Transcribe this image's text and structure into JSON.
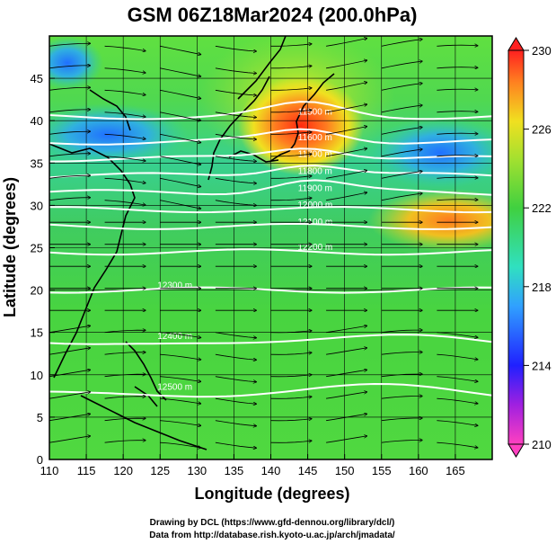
{
  "chart_data": {
    "type": "heatmap",
    "title": "GSM 06Z18Mar2024 (200.0hPa)",
    "xlabel": "Longitude (degrees)",
    "ylabel": "Latitude  (degrees)",
    "xlim": [
      110,
      170
    ],
    "ylim": [
      0,
      50
    ],
    "xticks": [
      "110",
      "115",
      "120",
      "125",
      "130",
      "135",
      "140",
      "145",
      "150",
      "155",
      "160",
      "165"
    ],
    "yticks": [
      "0",
      "5",
      "10",
      "15",
      "20",
      "25",
      "30",
      "35",
      "40",
      "45"
    ],
    "colorbar": {
      "range": [
        210,
        230
      ],
      "ticks": [
        "210",
        "214",
        "218",
        "222",
        "226",
        "230"
      ]
    },
    "contours": {
      "color": "#ffffff",
      "levels": [
        {
          "label": "11500 m",
          "lat": 40.5
        },
        {
          "label": "11600 m",
          "lat": 37.5
        },
        {
          "label": "11700 m",
          "lat": 35.5
        },
        {
          "label": "11800 m",
          "lat": 33.5
        },
        {
          "label": "11900 m",
          "lat": 31.5
        },
        {
          "label": "12000 m",
          "lat": 29.5
        },
        {
          "label": "12100 m",
          "lat": 27.5
        },
        {
          "label": "12200 m",
          "lat": 24.5
        },
        {
          "label": "12300 m",
          "lat": 20.0
        },
        {
          "label": "12400 m",
          "lat": 14.0
        },
        {
          "label": "12500 m",
          "lat": 8.0
        }
      ]
    },
    "temperature_features": [
      {
        "name": "warm core",
        "lon": 143,
        "lat": 41,
        "value": 228
      },
      {
        "name": "warm band",
        "lon": 165,
        "lat": 29,
        "value": 226
      },
      {
        "name": "cold pool",
        "lon": 120,
        "lat": 41,
        "value": 218
      },
      {
        "name": "cold pool east",
        "lon": 163,
        "lat": 38,
        "value": 218
      },
      {
        "name": "cold northwest",
        "lon": 112,
        "lat": 47,
        "value": 218
      }
    ],
    "colors": {
      "palette": [
        "#ff40c0",
        "#3040ff",
        "#30a0ff",
        "#30e0c0",
        "#40d040",
        "#90e030",
        "#f0e020",
        "#ff8020",
        "#ff2020"
      ]
    }
  },
  "footer": {
    "line1": "Drawing by DCL (https://www.gfd-dennou.org/library/dcl/)",
    "line2": "Data from http://database.rish.kyoto-u.ac.jp/arch/jmadata/"
  }
}
